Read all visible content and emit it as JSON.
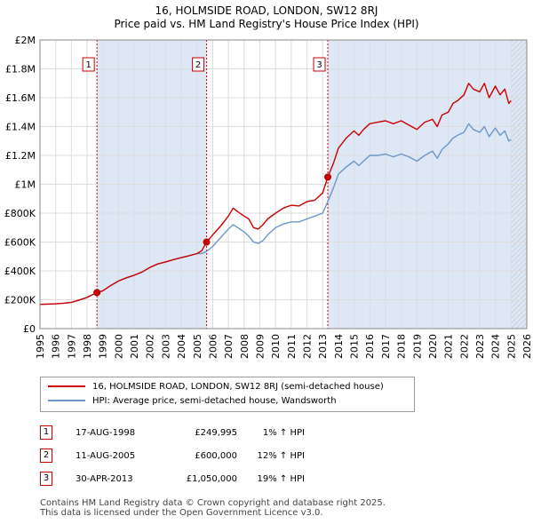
{
  "header": {
    "line1": "16, HOLMSIDE ROAD, LONDON, SW12 8RJ",
    "line2": "Price paid vs. HM Land Registry's House Price Index (HPI)"
  },
  "colors": {
    "property": "#cc0000",
    "hpi": "#6c97c8",
    "shade": "#dde7f5",
    "grid": "#dddddd"
  },
  "chart_data": {
    "type": "line",
    "title": "16, HOLMSIDE ROAD, LONDON, SW12 8RJ — Price paid vs. HM Land Registry's House Price Index (HPI)",
    "xlim": [
      1995,
      2026
    ],
    "ylim": [
      0,
      2000000
    ],
    "x_ticks": [
      "1995",
      "1996",
      "1997",
      "1998",
      "1999",
      "2000",
      "2001",
      "2002",
      "2003",
      "2004",
      "2005",
      "2006",
      "2007",
      "2008",
      "2009",
      "2010",
      "2011",
      "2012",
      "2013",
      "2014",
      "2015",
      "2016",
      "2017",
      "2018",
      "2019",
      "2020",
      "2021",
      "2022",
      "2023",
      "2024",
      "2025",
      "2026"
    ],
    "y_ticks": [
      {
        "value": 0,
        "label": "£0"
      },
      {
        "value": 200000,
        "label": "£200K"
      },
      {
        "value": 400000,
        "label": "£400K"
      },
      {
        "value": 600000,
        "label": "£600K"
      },
      {
        "value": 800000,
        "label": "£800K"
      },
      {
        "value": 1000000,
        "label": "£1M"
      },
      {
        "value": 1200000,
        "label": "£1.2M"
      },
      {
        "value": 1400000,
        "label": "£1.4M"
      },
      {
        "value": 1600000,
        "label": "£1.6M"
      },
      {
        "value": 1800000,
        "label": "£1.8M"
      },
      {
        "value": 2000000,
        "label": "£2M"
      }
    ],
    "series": [
      {
        "name": "16, HOLMSIDE ROAD, LONDON, SW12 8RJ (semi-detached house)",
        "color": "#cc0000",
        "x": [
          1995.0,
          1995.5,
          1996.0,
          1996.5,
          1997.0,
          1997.5,
          1998.0,
          1998.3,
          1998.63,
          1999.0,
          1999.5,
          2000.0,
          2000.5,
          2001.0,
          2001.5,
          2002.0,
          2002.5,
          2003.0,
          2003.5,
          2004.0,
          2004.5,
          2005.0,
          2005.3,
          2005.61,
          2006.0,
          2006.5,
          2007.0,
          2007.3,
          2007.6,
          2008.0,
          2008.3,
          2008.6,
          2008.9,
          2009.2,
          2009.5,
          2010.0,
          2010.5,
          2011.0,
          2011.5,
          2012.0,
          2012.5,
          2013.0,
          2013.33,
          2013.7,
          2014.0,
          2014.5,
          2015.0,
          2015.3,
          2015.6,
          2016.0,
          2016.5,
          2017.0,
          2017.5,
          2018.0,
          2018.5,
          2019.0,
          2019.5,
          2020.0,
          2020.3,
          2020.6,
          2021.0,
          2021.3,
          2021.6,
          2022.0,
          2022.3,
          2022.6,
          2023.0,
          2023.3,
          2023.6,
          2024.0,
          2024.3,
          2024.6,
          2024.85,
          2025.0
        ],
        "values": [
          168000,
          170000,
          172000,
          176000,
          182000,
          198000,
          216000,
          232000,
          249995,
          262000,
          298000,
          330000,
          352000,
          370000,
          392000,
          424000,
          448000,
          462000,
          478000,
          492000,
          505000,
          520000,
          540000,
          600000,
          650000,
          710000,
          780000,
          835000,
          810000,
          780000,
          760000,
          700000,
          690000,
          720000,
          760000,
          800000,
          835000,
          855000,
          850000,
          880000,
          890000,
          940000,
          1050000,
          1150000,
          1250000,
          1320000,
          1370000,
          1340000,
          1380000,
          1420000,
          1430000,
          1440000,
          1420000,
          1440000,
          1410000,
          1380000,
          1430000,
          1450000,
          1400000,
          1480000,
          1500000,
          1560000,
          1580000,
          1620000,
          1700000,
          1660000,
          1640000,
          1700000,
          1600000,
          1680000,
          1620000,
          1660000,
          1560000,
          1580000
        ]
      },
      {
        "name": "HPI: Average price, semi-detached house, Wandsworth",
        "color": "#6c97c8",
        "x": [
          1995.0,
          1995.5,
          1996.0,
          1996.5,
          1997.0,
          1997.5,
          1998.0,
          1998.3,
          1998.63,
          1999.0,
          1999.5,
          2000.0,
          2000.5,
          2001.0,
          2001.5,
          2002.0,
          2002.5,
          2003.0,
          2003.5,
          2004.0,
          2004.5,
          2005.0,
          2005.3,
          2005.61,
          2006.0,
          2006.5,
          2007.0,
          2007.3,
          2007.6,
          2008.0,
          2008.3,
          2008.6,
          2008.9,
          2009.2,
          2009.5,
          2010.0,
          2010.5,
          2011.0,
          2011.5,
          2012.0,
          2012.5,
          2013.0,
          2013.33,
          2013.7,
          2014.0,
          2014.5,
          2015.0,
          2015.3,
          2015.6,
          2016.0,
          2016.5,
          2017.0,
          2017.5,
          2018.0,
          2018.5,
          2019.0,
          2019.5,
          2020.0,
          2020.3,
          2020.6,
          2021.0,
          2021.3,
          2021.6,
          2022.0,
          2022.3,
          2022.6,
          2023.0,
          2023.3,
          2023.6,
          2024.0,
          2024.3,
          2024.6,
          2024.85,
          2025.0
        ],
        "values": [
          168000,
          170000,
          172000,
          176000,
          182000,
          198000,
          216000,
          232000,
          247000,
          262000,
          298000,
          330000,
          352000,
          370000,
          392000,
          424000,
          448000,
          462000,
          478000,
          492000,
          505000,
          520000,
          520000,
          535000,
          570000,
          630000,
          690000,
          720000,
          700000,
          670000,
          640000,
          600000,
          590000,
          610000,
          650000,
          700000,
          725000,
          740000,
          740000,
          760000,
          780000,
          800000,
          880000,
          980000,
          1070000,
          1120000,
          1160000,
          1130000,
          1160000,
          1200000,
          1200000,
          1210000,
          1190000,
          1210000,
          1190000,
          1160000,
          1200000,
          1230000,
          1180000,
          1240000,
          1280000,
          1320000,
          1340000,
          1360000,
          1420000,
          1380000,
          1360000,
          1400000,
          1330000,
          1390000,
          1340000,
          1370000,
          1300000,
          1310000
        ]
      }
    ],
    "annotations": [
      {
        "label": "1",
        "x": 1998.63,
        "value": 249995
      },
      {
        "label": "2",
        "x": 2005.61,
        "value": 600000
      },
      {
        "label": "3",
        "x": 2013.33,
        "value": 1050000
      }
    ],
    "shaded_regions": [
      [
        1998.63,
        2005.61
      ],
      [
        2013.33,
        2026
      ]
    ],
    "hatched_region": [
      2025.0,
      2026.0
    ],
    "legend_position": "bottom"
  },
  "legend": {
    "property_label": "16, HOLMSIDE ROAD, LONDON, SW12 8RJ (semi-detached house)",
    "hpi_label": "HPI: Average price, semi-detached house, Wandsworth"
  },
  "sales": [
    {
      "num": "1",
      "date": "17-AUG-1998",
      "price": "£249,995",
      "hpi": "1% ↑ HPI"
    },
    {
      "num": "2",
      "date": "11-AUG-2005",
      "price": "£600,000",
      "hpi": "12% ↑ HPI"
    },
    {
      "num": "3",
      "date": "30-APR-2013",
      "price": "£1,050,000",
      "hpi": "19% ↑ HPI"
    }
  ],
  "footer": {
    "line1": "Contains HM Land Registry data © Crown copyright and database right 2025.",
    "line2": "This data is licensed under the Open Government Licence v3.0."
  }
}
